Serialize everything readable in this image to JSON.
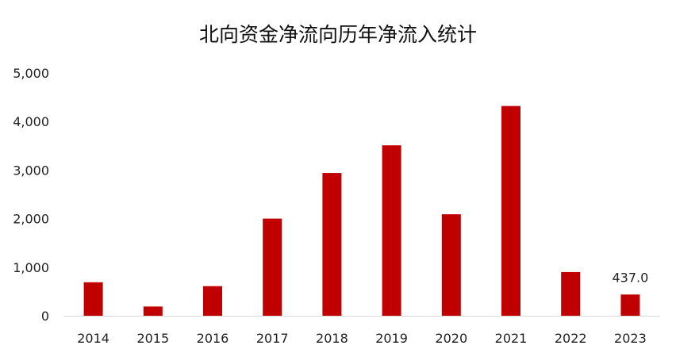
{
  "chart_data": {
    "type": "bar",
    "title": "北向资金净流向历年净流入统计",
    "categories": [
      "2014",
      "2015",
      "2016",
      "2017",
      "2018",
      "2019",
      "2020",
      "2021",
      "2022",
      "2023"
    ],
    "values": [
      690,
      190,
      610,
      2000,
      2940,
      3510,
      2090,
      4320,
      900,
      437.0
    ],
    "data_labels": [
      {
        "category": "2023",
        "text": "437.0"
      }
    ],
    "y_ticks": [
      "0",
      "1,000",
      "2,000",
      "3,000",
      "4,000",
      "5,000"
    ],
    "ylim": [
      0,
      5000
    ],
    "xlabel": "",
    "ylabel": "",
    "grid": false,
    "bar_color": "#C00000",
    "axis_color": "#D9D9D9"
  }
}
